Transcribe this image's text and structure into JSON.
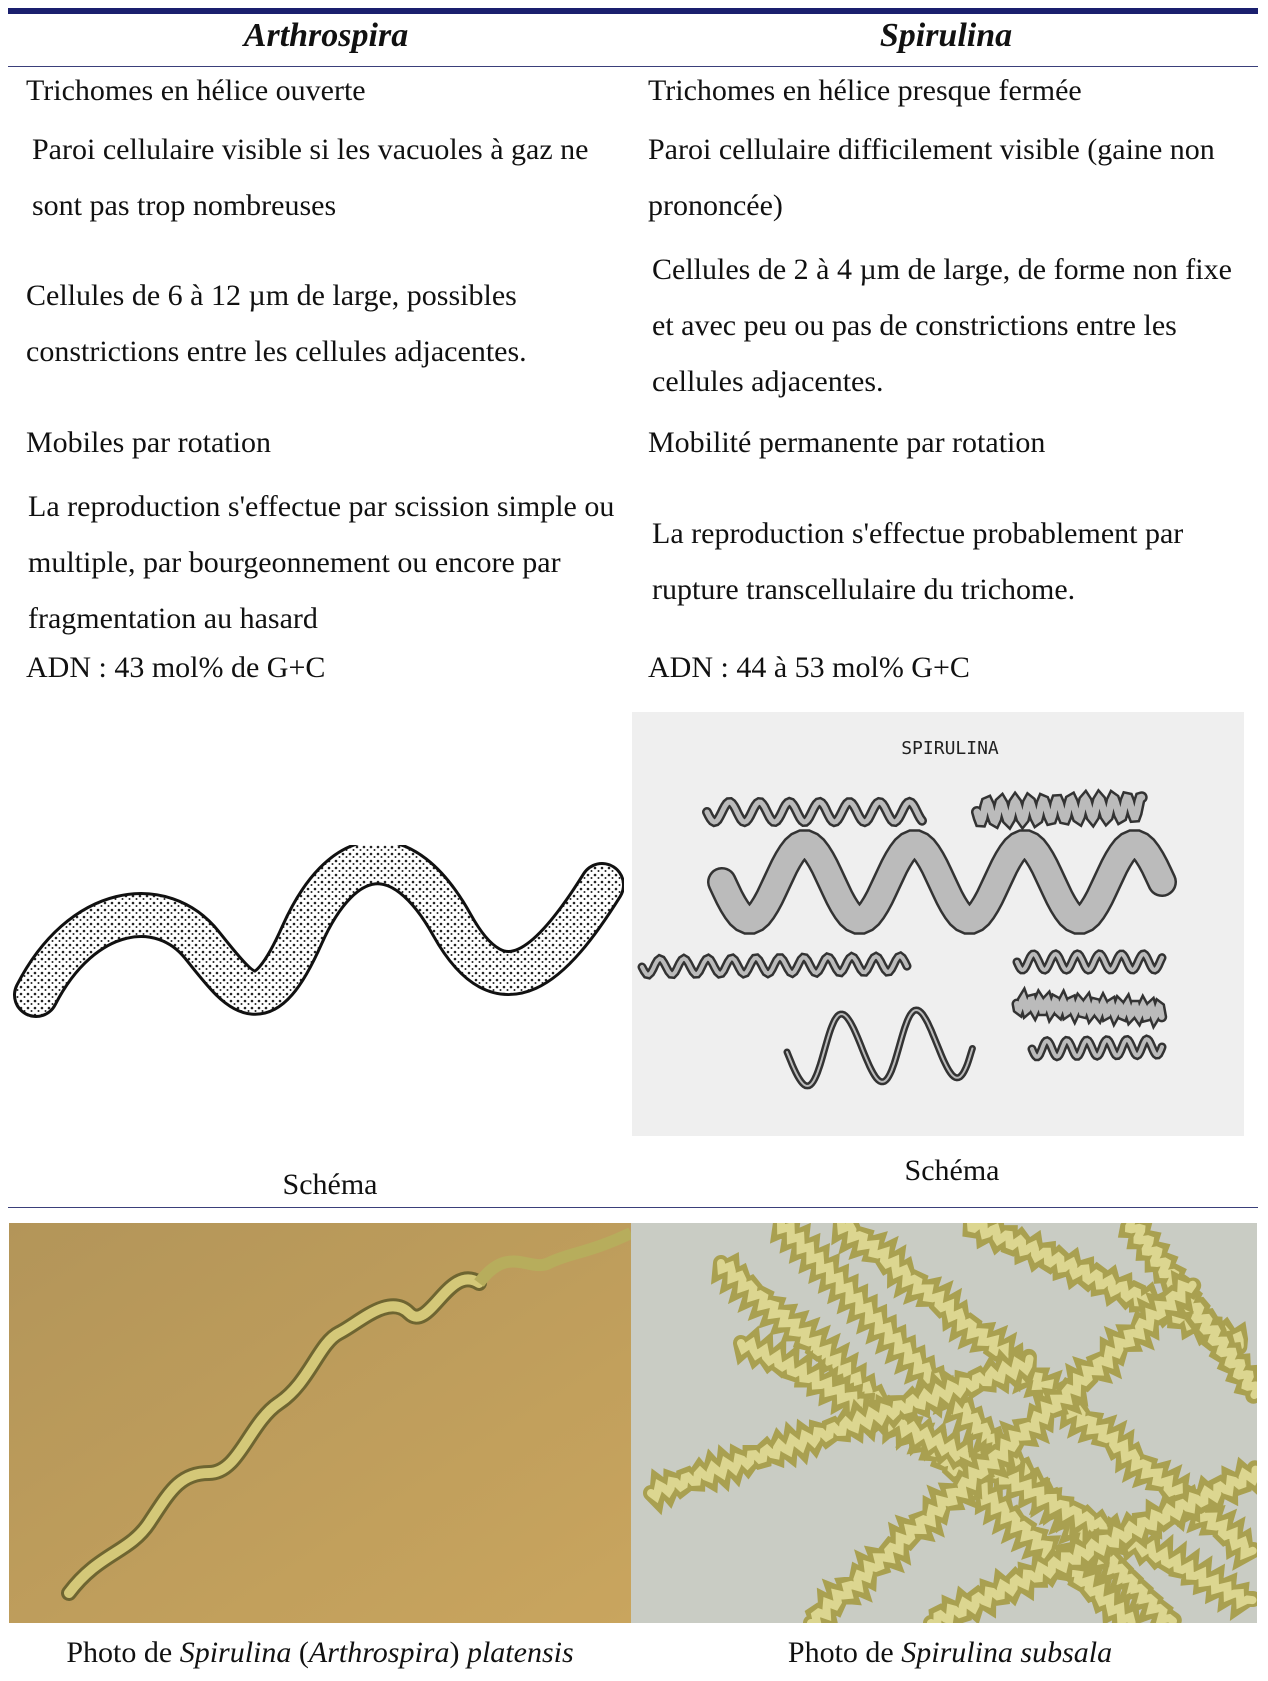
{
  "header": {
    "left": "Arthrospira",
    "right": "Spirulina"
  },
  "rows": [
    [
      "Trichomes en hélice ouverte",
      "Trichomes en hélice presque fermée"
    ],
    [
      "Paroi cellulaire visible si les vacuoles à gaz ne sont pas trop nombreuses",
      "Paroi cellulaire difficilement visible (gaine non prononcée)"
    ],
    [
      "Cellules de 6 à 12 µm de large, possibles constrictions entre les cellules adjacentes.",
      "Cellules de 2 à 4 µm de large, de forme non fixe et avec peu ou pas de constrictions entre les cellules adjacentes."
    ],
    [
      "Mobiles par rotation",
      "Mobilité permanente par rotation"
    ],
    [
      "La reproduction s'effectue par scission simple ou multiple, par bourgeonnement ou encore par fragmentation au hasard",
      "La reproduction s'effectue probablement par rupture transcellulaire du trichome."
    ],
    [
      "ADN : 43 mol% de G+C",
      "ADN : 44 à 53 mol% G+C"
    ]
  ],
  "figures": {
    "drawing_label": "SPIRULINA",
    "left_caption": "Schéma",
    "right_caption": "Schéma"
  },
  "photos": {
    "left_caption": [
      "Photo de ",
      "Spirulina",
      " (",
      "Arthrospira",
      ") ",
      "platensis"
    ],
    "right_caption": [
      "Photo de ",
      "Spirulina subsala"
    ]
  }
}
